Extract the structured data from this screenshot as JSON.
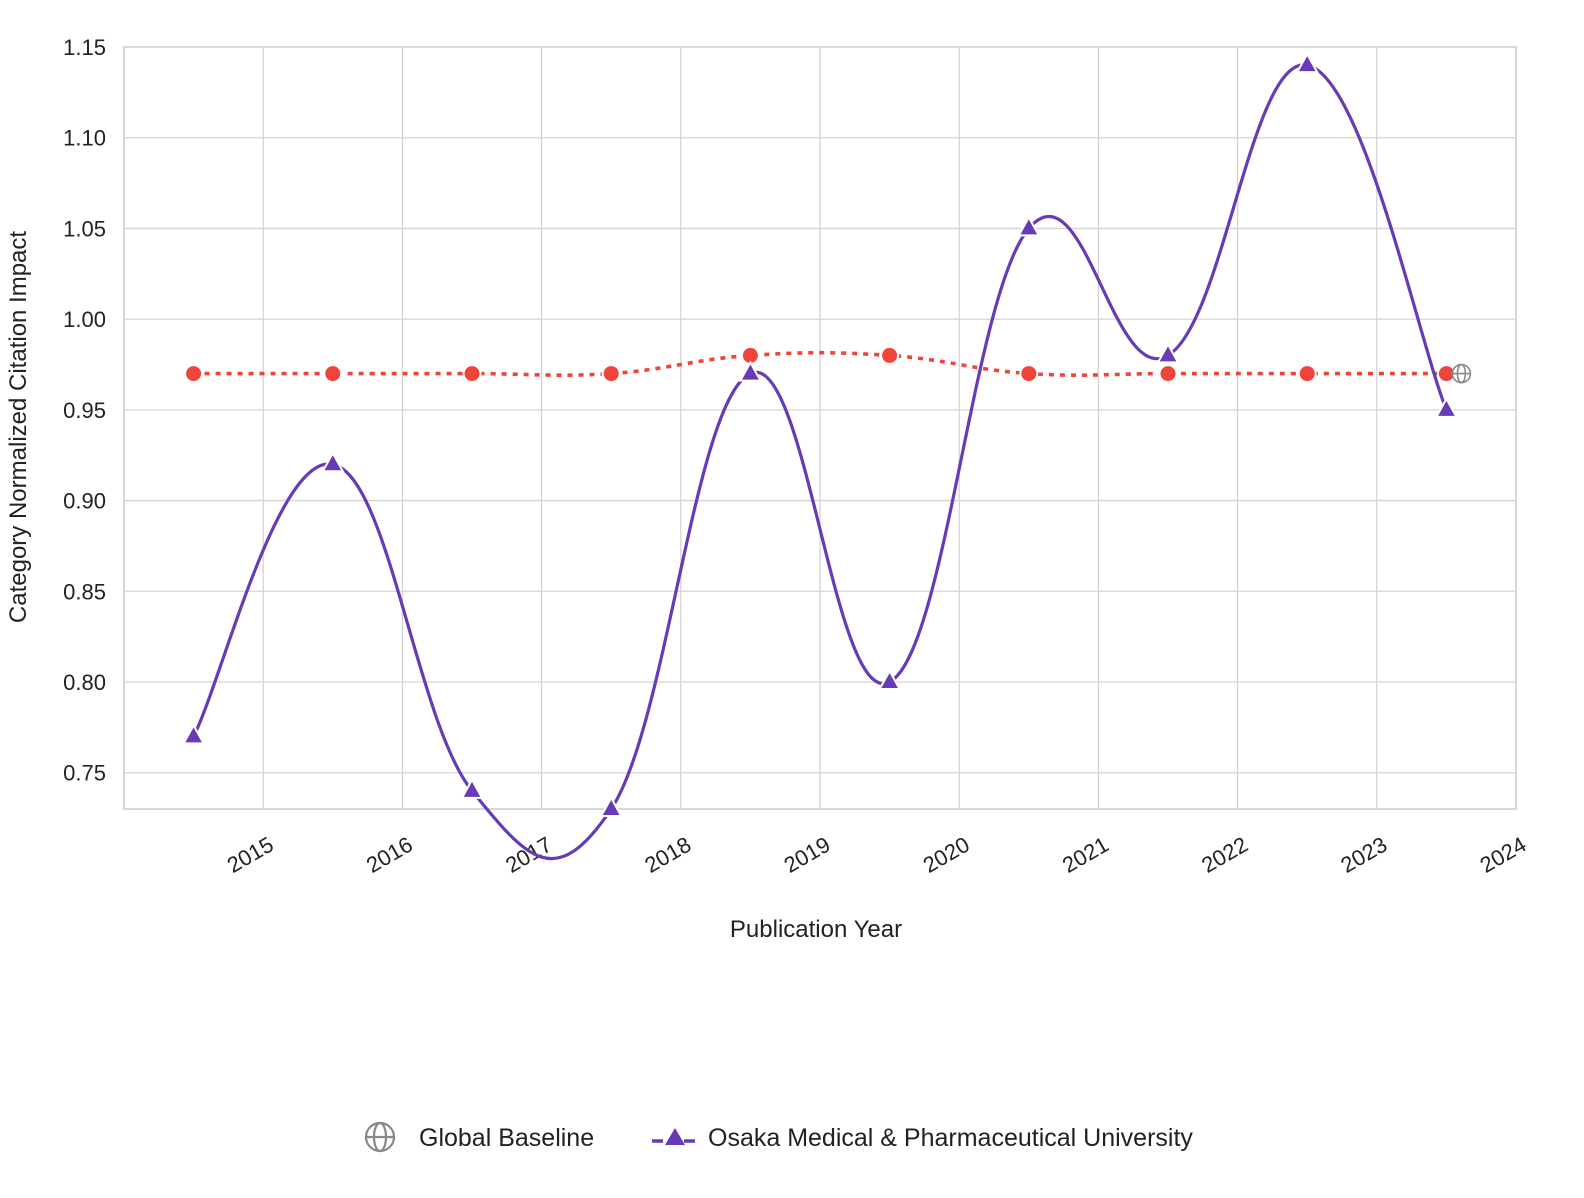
{
  "chart_data": {
    "type": "line",
    "title": "",
    "xlabel": "Publication Year",
    "ylabel": "Category Normalized Citation Impact",
    "x_ticks": [
      "2015",
      "2016",
      "2017",
      "2018",
      "2019",
      "2020",
      "2021",
      "2022",
      "2023",
      "2024"
    ],
    "y_ticks": [
      "0.75",
      "0.80",
      "0.85",
      "0.90",
      "0.95",
      "1.00",
      "1.05",
      "1.10",
      "1.15"
    ],
    "ylim": [
      0.73,
      1.15
    ],
    "x": [
      "2015",
      "2016",
      "2017",
      "2018",
      "2019",
      "2020",
      "2021",
      "2022",
      "2023",
      "2024"
    ],
    "grid": true,
    "legend_position": "bottom",
    "series": [
      {
        "name": "Global Baseline",
        "values": [
          0.97,
          0.97,
          0.97,
          0.97,
          0.98,
          0.98,
          0.97,
          0.97,
          0.97,
          0.97
        ],
        "color": "#f0443a",
        "line_style": "dotted",
        "marker": "circle",
        "legend_icon": "globe-icon"
      },
      {
        "name": "Osaka Medical & Pharmaceutical University",
        "values": [
          0.77,
          0.92,
          0.74,
          0.73,
          0.97,
          0.8,
          1.05,
          0.98,
          1.14,
          0.95
        ],
        "color": "#673ab7",
        "line_style": "solid",
        "marker": "triangle"
      }
    ]
  }
}
